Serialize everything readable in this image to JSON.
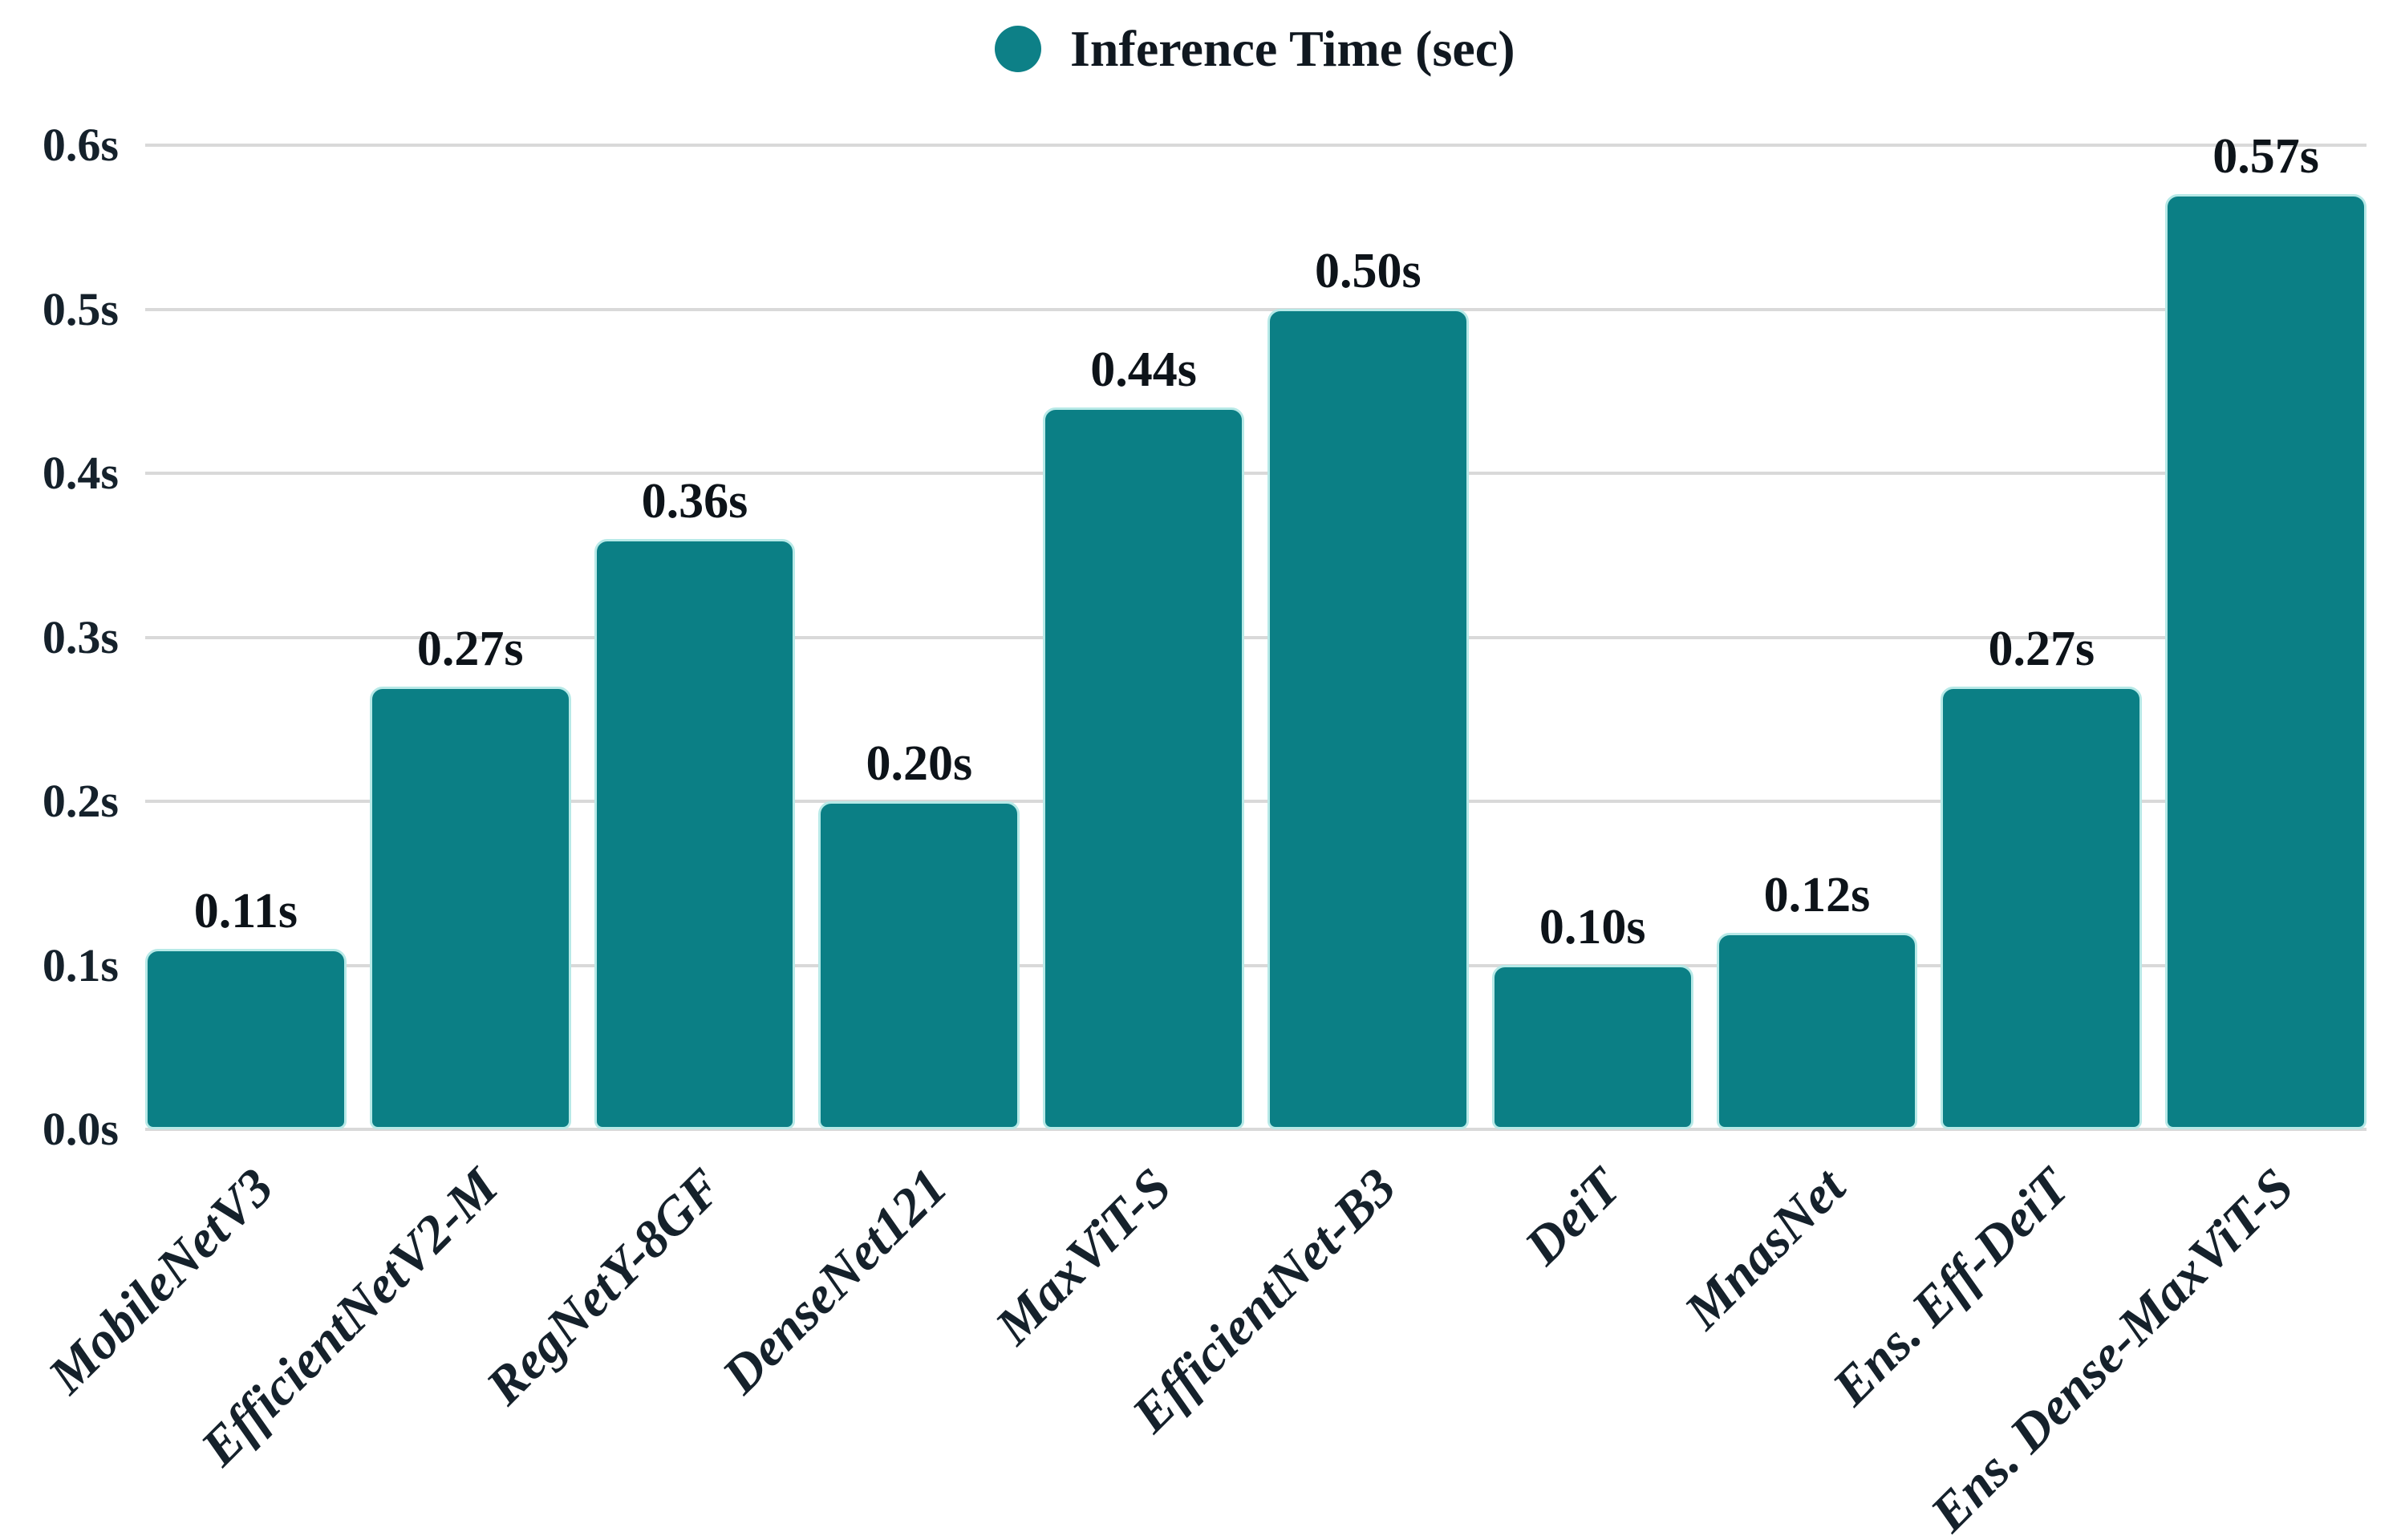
{
  "chart_data": {
    "type": "bar",
    "title": "",
    "xlabel": "",
    "ylabel": "",
    "unit": "s",
    "legend": {
      "label": "Inference Time (sec)",
      "marker": "circle",
      "position": "top-center"
    },
    "categories": [
      "MobileNetV3",
      "EfficientNetV2-M",
      "RegNetY-8GF",
      "DenseNet121",
      "MaxViT-S",
      "EfficientNet-B3",
      "DeiT",
      "MnasNet",
      "Ens. Eff-DeiT",
      "Ens. Dense-MaxViT-S"
    ],
    "values": [
      0.11,
      0.27,
      0.36,
      0.2,
      0.44,
      0.5,
      0.1,
      0.12,
      0.27,
      0.57
    ],
    "value_labels": [
      "0.11s",
      "0.27s",
      "0.36s",
      "0.20s",
      "0.44s",
      "0.50s",
      "0.10s",
      "0.12s",
      "0.27s",
      "0.57s"
    ],
    "ylim": [
      0,
      0.6
    ],
    "yticks": [
      {
        "value": 0.0,
        "label": "0.0s"
      },
      {
        "value": 0.1,
        "label": "0.1s"
      },
      {
        "value": 0.2,
        "label": "0.2s"
      },
      {
        "value": 0.3,
        "label": "0.3s"
      },
      {
        "value": 0.4,
        "label": "0.4s"
      },
      {
        "value": 0.5,
        "label": "0.5s"
      },
      {
        "value": 0.6,
        "label": "0.6s"
      }
    ],
    "grid": true,
    "legend_position": "top-center",
    "colors": {
      "bar": "#0b7f85",
      "bar_outline": "#b7e9e7",
      "grid": "#d9d9d9",
      "tick_text": "#15212b",
      "value_text": "#0d1319",
      "legend_marker": "#0d8087"
    }
  }
}
